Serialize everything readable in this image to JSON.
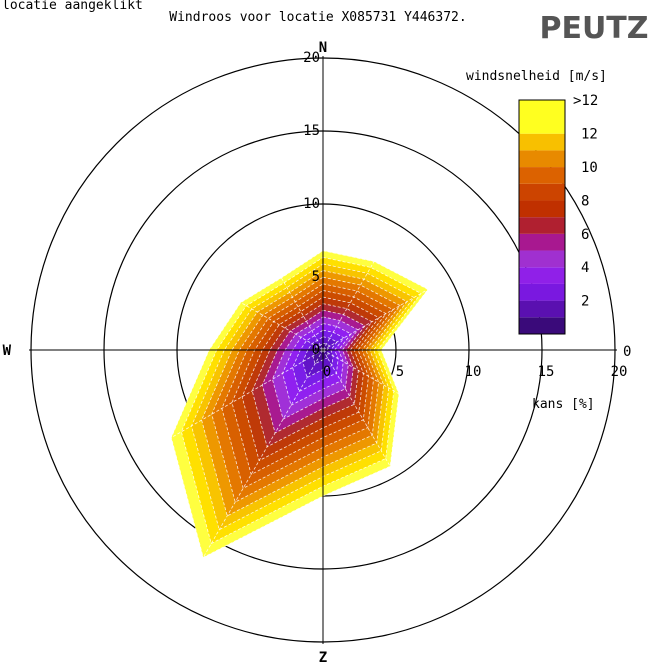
{
  "top_caption": "locatie aangeklikt",
  "title": "Windroos voor locatie X085731 Y446372.",
  "logo_text": "PEUTZ",
  "chart_data": {
    "type": "polar-area",
    "directions": [
      "N",
      "O",
      "Z",
      "W"
    ],
    "sector_angles_deg": [
      0,
      30,
      60,
      90,
      120,
      150,
      180,
      210,
      240,
      270,
      300,
      330
    ],
    "radial_axis": {
      "label": "kans [%]",
      "range": [
        0,
        20
      ],
      "ticks": [
        0,
        5,
        10,
        15,
        20
      ],
      "tick_labels": [
        "0",
        "5",
        "10",
        "15",
        "20"
      ],
      "right_zero_label": "0"
    },
    "legend": {
      "title": "windsnelheid [m/s]",
      "labels": [
        ">12",
        "12",
        "10",
        "8",
        "6",
        "4",
        "2"
      ],
      "label_values": [
        13,
        12,
        10,
        8,
        6,
        4,
        2
      ],
      "bands": [
        {
          "upper_ms": 0,
          "color": "#000000"
        },
        {
          "upper_ms": 1,
          "color": "#3a0a7a"
        },
        {
          "upper_ms": 2,
          "color": "#5a10b0"
        },
        {
          "upper_ms": 3,
          "color": "#7a18e0"
        },
        {
          "upper_ms": 4,
          "color": "#9020e8"
        },
        {
          "upper_ms": 5,
          "color": "#a030d0"
        },
        {
          "upper_ms": 6,
          "color": "#a81890"
        },
        {
          "upper_ms": 7,
          "color": "#b02030"
        },
        {
          "upper_ms": 8,
          "color": "#c03000"
        },
        {
          "upper_ms": 9,
          "color": "#cc4400"
        },
        {
          "upper_ms": 10,
          "color": "#dc6200"
        },
        {
          "upper_ms": 11,
          "color": "#e88a00"
        },
        {
          "upper_ms": 12,
          "color": "#f8c000"
        },
        {
          "upper_ms": 13,
          "color": "#ffff20"
        }
      ]
    },
    "cumulative_max_pct": [
      6.8,
      7.0,
      8.3,
      4.0,
      6.0,
      9.2,
      10.0,
      16.4,
      12.0,
      7.8,
      6.5,
      5.7
    ],
    "fill_colors_inner_to_outer": [
      "#4a0e9a",
      "#6214c8",
      "#7a1ee8",
      "#9020f0",
      "#a030d8",
      "#a81a90",
      "#b02a30",
      "#bf3a08",
      "#cc4c00",
      "#d86000",
      "#e47800",
      "#ee9800",
      "#f8c400",
      "#ffe000",
      "#ffff40"
    ]
  }
}
